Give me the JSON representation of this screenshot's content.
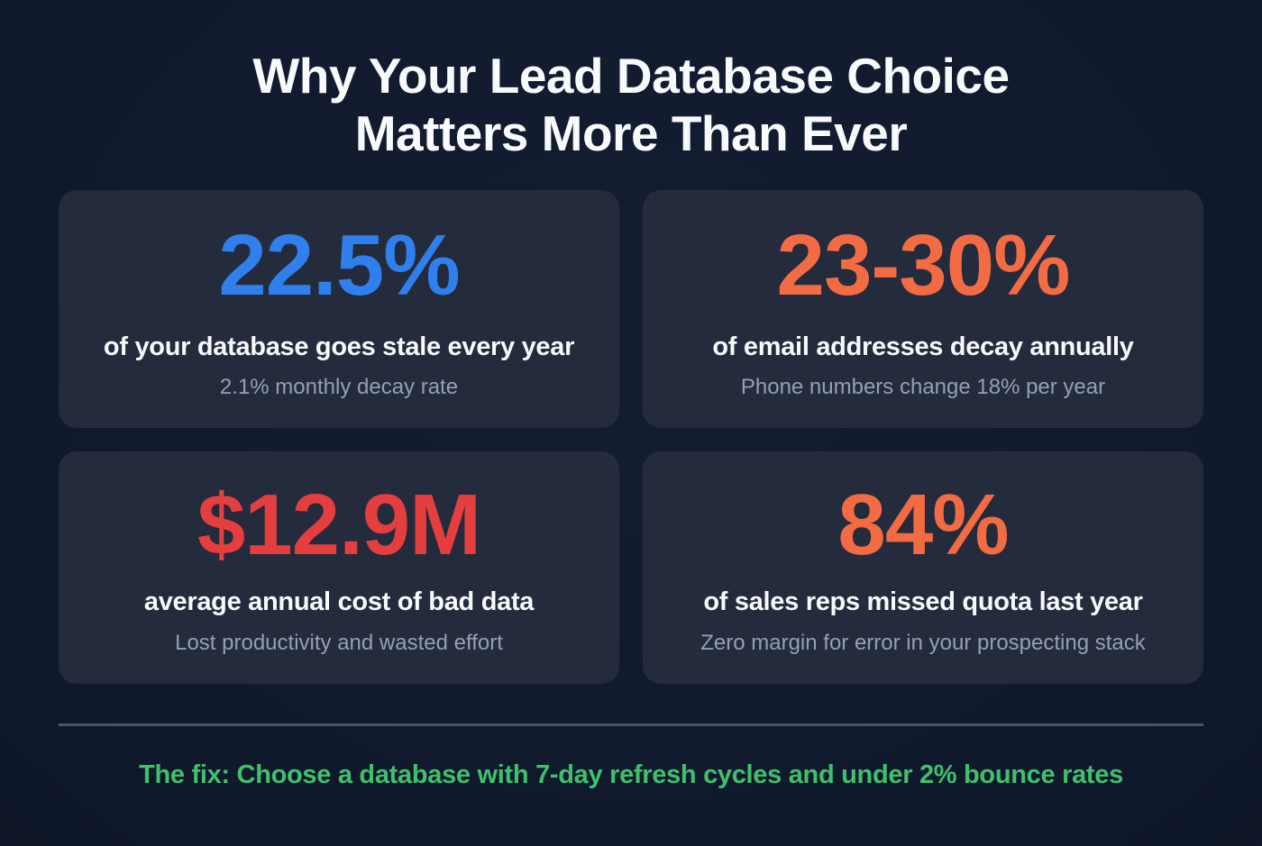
{
  "title": {
    "line1": "Why Your Lead Database Choice",
    "line2": "Matters More Than Ever"
  },
  "cards": [
    {
      "stat": "22.5%",
      "label": "of your database goes stale every year",
      "sub": "2.1% monthly decay rate",
      "color": "#2f80ed"
    },
    {
      "stat": "23-30%",
      "label": "of email addresses decay annually",
      "sub": "Phone numbers change 18% per year",
      "color": "#f26b43"
    },
    {
      "stat": "$12.9M",
      "label": "average annual cost of bad data",
      "sub": "Lost productivity and wasted effort",
      "color": "#e53e3e"
    },
    {
      "stat": "84%",
      "label": "of sales reps missed quota last year",
      "sub": "Zero margin for error in your prospecting stack",
      "color": "#f26b43"
    }
  ],
  "footer": {
    "text": "The fix: Choose a database with 7-day refresh cycles and under 2% bounce rates",
    "color": "#3ec16a"
  }
}
